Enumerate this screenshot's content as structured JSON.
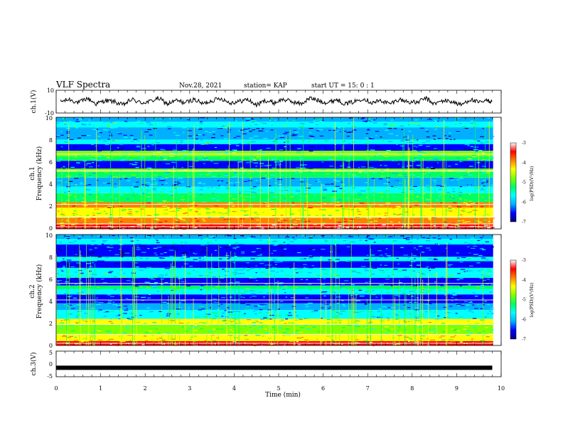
{
  "header": {
    "title": "VLF Spectra",
    "date": "Nov.28, 2021",
    "station": "station= KAP",
    "start": "start  UT =   15: 0  : 1"
  },
  "chart_data": [
    {
      "type": "line",
      "panel": "waveform-ch1",
      "ylabel": "ch.1(V)",
      "xlim": [
        0,
        10
      ],
      "ylim": [
        -10,
        10
      ],
      "yticks": [
        "10",
        "-10"
      ],
      "series": [
        {
          "x": [
            0.1,
            0.3,
            0.5,
            0.7,
            0.9,
            1.1,
            1.3,
            1.5,
            1.7,
            1.9,
            2.1,
            2.3,
            2.5,
            2.7,
            2.9,
            3.1,
            3.3,
            3.5,
            3.7,
            3.9,
            4.1,
            4.3,
            4.5,
            4.7,
            4.9,
            5.1,
            5.3,
            5.5,
            5.7,
            5.9,
            6.1,
            6.3,
            6.5,
            6.7,
            6.9,
            7.1,
            7.3,
            7.5,
            7.7,
            7.9,
            8.1,
            8.3,
            8.5,
            8.7,
            8.9,
            9.1,
            9.3,
            9.5,
            9.7,
            9.8
          ],
          "values": [
            0,
            2,
            -1,
            3,
            -2,
            1,
            0,
            -3,
            2,
            -1,
            0,
            3,
            -2,
            1,
            -1,
            2,
            -2,
            1,
            3,
            -1,
            0,
            2,
            -3,
            1,
            -1,
            2,
            0,
            -2,
            3,
            1,
            -1,
            2,
            -2,
            0,
            3,
            -1,
            1,
            -2,
            2,
            0,
            -1,
            3,
            -2,
            1,
            0,
            -3,
            2,
            -1,
            1,
            0
          ]
        }
      ]
    },
    {
      "type": "heatmap",
      "panel": "spectrogram-ch1",
      "ylabel": "Frequency (kHz)",
      "channel_label": "ch.1",
      "xlim": [
        0,
        10
      ],
      "ylim": [
        0,
        10
      ],
      "yticks": [
        "0",
        "2",
        "4",
        "6",
        "8",
        "10"
      ],
      "value_units": "log(PSD)(V²/Hz)",
      "bands": [
        {
          "from": 0,
          "to": 0.4,
          "level": -3.6
        },
        {
          "from": 0.4,
          "to": 1.0,
          "level": -4.1
        },
        {
          "from": 1.0,
          "to": 1.9,
          "level": -4.6
        },
        {
          "from": 1.9,
          "to": 2.4,
          "level": -4.2
        },
        {
          "from": 2.4,
          "to": 3.2,
          "level": -5.2
        },
        {
          "from": 3.2,
          "to": 3.8,
          "level": -5.6
        },
        {
          "from": 3.8,
          "to": 4.6,
          "level": -6.0
        },
        {
          "from": 4.6,
          "to": 5.1,
          "level": -5.3
        },
        {
          "from": 5.1,
          "to": 5.4,
          "level": -4.9
        },
        {
          "from": 5.4,
          "to": 6.1,
          "level": -6.2
        },
        {
          "from": 6.1,
          "to": 6.5,
          "level": -5.2
        },
        {
          "from": 6.5,
          "to": 7.0,
          "level": -5.0
        },
        {
          "from": 7.0,
          "to": 7.6,
          "level": -6.3
        },
        {
          "from": 7.6,
          "to": 8.0,
          "level": -5.6
        },
        {
          "from": 8.0,
          "to": 9.1,
          "level": -6.1
        },
        {
          "from": 9.1,
          "to": 9.6,
          "level": -5.5
        },
        {
          "from": 9.6,
          "to": 10,
          "level": -5.9
        }
      ],
      "lines_khz": [
        0.2,
        0.45,
        1.1,
        2.2,
        5.2,
        6.7
      ]
    },
    {
      "type": "heatmap",
      "panel": "spectrogram-ch2",
      "ylabel": "Frequency (kHz)",
      "channel_label": "ch.2",
      "xlim": [
        0,
        10
      ],
      "ylim": [
        0,
        10
      ],
      "yticks": [
        "0",
        "2",
        "4",
        "6",
        "8",
        "10"
      ],
      "value_units": "log(PSD)(V²/Hz)",
      "bands": [
        {
          "from": 0,
          "to": 0.4,
          "level": -3.8
        },
        {
          "from": 0.4,
          "to": 1.0,
          "level": -4.5
        },
        {
          "from": 1.0,
          "to": 1.9,
          "level": -5.0
        },
        {
          "from": 1.9,
          "to": 2.4,
          "level": -4.6
        },
        {
          "from": 2.4,
          "to": 3.2,
          "level": -5.7
        },
        {
          "from": 3.2,
          "to": 3.8,
          "level": -5.9
        },
        {
          "from": 3.8,
          "to": 4.6,
          "level": -6.2
        },
        {
          "from": 4.6,
          "to": 5.1,
          "level": -5.6
        },
        {
          "from": 5.1,
          "to": 5.4,
          "level": -5.3
        },
        {
          "from": 5.4,
          "to": 6.1,
          "level": -6.3
        },
        {
          "from": 6.1,
          "to": 6.5,
          "level": -5.5
        },
        {
          "from": 6.5,
          "to": 7.0,
          "level": -5.7
        },
        {
          "from": 7.0,
          "to": 7.6,
          "level": -6.4
        },
        {
          "from": 7.6,
          "to": 8.0,
          "level": -5.8
        },
        {
          "from": 8.0,
          "to": 9.1,
          "level": -6.3
        },
        {
          "from": 9.1,
          "to": 9.6,
          "level": -5.7
        },
        {
          "from": 9.6,
          "to": 10,
          "level": -6.0
        }
      ],
      "lines_khz": [
        0.2,
        1.0,
        1.9,
        4.1,
        5.6
      ]
    },
    {
      "type": "line",
      "panel": "waveform-ch3",
      "ylabel": "ch.3(V)",
      "xlabel": "Time  (min)",
      "xlim": [
        0,
        10
      ],
      "ylim": [
        -5,
        5
      ],
      "yticks": [
        "5",
        "0",
        "-5"
      ],
      "xticks": [
        "0",
        "1",
        "2",
        "3",
        "4",
        "5",
        "6",
        "7",
        "8",
        "9",
        "10"
      ],
      "series": [
        {
          "x": [
            0,
            9.8
          ],
          "values": [
            -1.5,
            -1.5
          ]
        }
      ]
    }
  ],
  "colorbar": {
    "label": "log(PSD)(V²/Hz)",
    "ticks": [
      "-3",
      "-4",
      "-5",
      "-6",
      "-7"
    ],
    "range": [
      -7,
      -3
    ],
    "colors": [
      "#000080",
      "#0000ff",
      "#00b0ff",
      "#00ffff",
      "#00ff60",
      "#80ff00",
      "#ffff00",
      "#ff8000",
      "#ff0000",
      "#ffffff"
    ]
  }
}
